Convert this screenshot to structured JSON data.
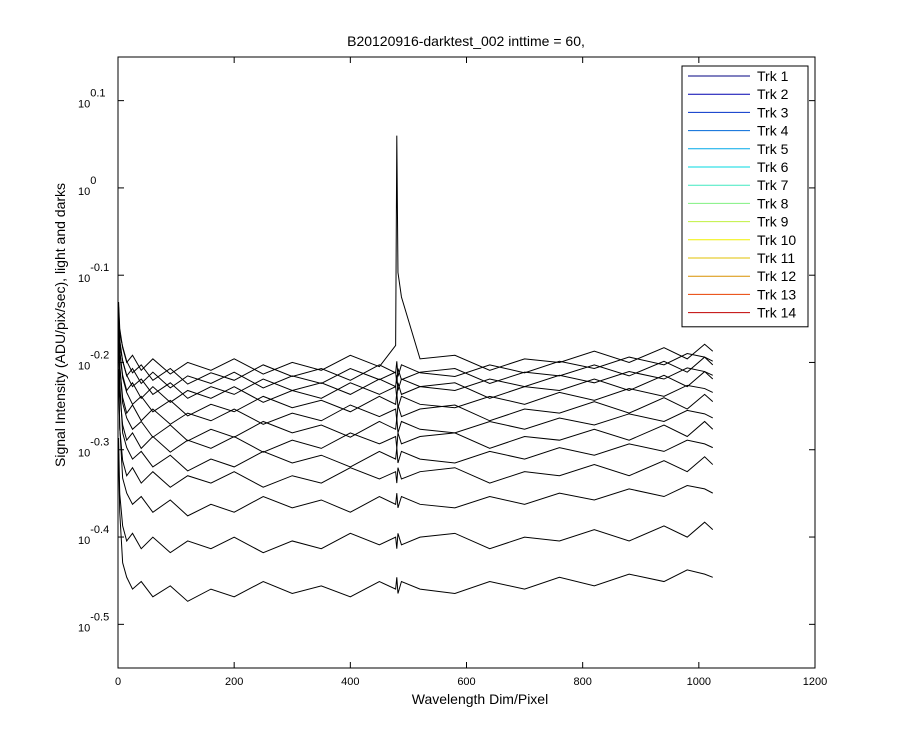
{
  "chart_data": {
    "type": "line",
    "title": "B20120916-darktest_002 inttime = 60,",
    "x_label": "Wavelength Dim/Pixel",
    "y_label": "Signal Intensity (ADU/pix/sec), light and darks",
    "yscale": "log",
    "xlim": [
      0,
      1200
    ],
    "xticks": [
      0,
      200,
      400,
      600,
      800,
      1000,
      1200
    ],
    "ylim": [
      0.2818,
      1.4125
    ],
    "yticks": [
      {
        "value": 0.3162,
        "label": "10^-0.5"
      },
      {
        "value": 0.3981,
        "label": "10^-0.4"
      },
      {
        "value": 0.5012,
        "label": "10^-0.3"
      },
      {
        "value": 0.631,
        "label": "10^-0.2"
      },
      {
        "value": 0.7943,
        "label": "10^-0.1"
      },
      {
        "value": 1,
        "label": "10^0"
      },
      {
        "value": 1.2589,
        "label": "10^0.1"
      }
    ],
    "grid": false,
    "legend": "northeast",
    "plot_line_color": "#000000",
    "x": [
      1,
      3,
      8,
      15,
      25,
      40,
      60,
      90,
      120,
      160,
      200,
      250,
      300,
      350,
      400,
      450,
      478,
      480,
      482,
      488,
      520,
      580,
      640,
      700,
      760,
      820,
      880,
      940,
      980,
      1010,
      1024
    ],
    "series": [
      {
        "name": "Trk 1",
        "color": "#000080",
        "values": [
          0.496,
          0.425,
          0.372,
          0.358,
          0.347,
          0.354,
          0.34,
          0.35,
          0.336,
          0.347,
          0.34,
          0.354,
          0.343,
          0.35,
          0.34,
          0.354,
          0.347,
          0.358,
          0.343,
          0.354,
          0.347,
          0.343,
          0.354,
          0.347,
          0.358,
          0.35,
          0.361,
          0.354,
          0.365,
          0.361,
          0.358
        ]
      },
      {
        "name": "Trk 2",
        "color": "#0000b0",
        "values": [
          0.517,
          0.446,
          0.41,
          0.394,
          0.402,
          0.386,
          0.398,
          0.382,
          0.394,
          0.386,
          0.398,
          0.382,
          0.394,
          0.386,
          0.402,
          0.39,
          0.398,
          0.386,
          0.402,
          0.39,
          0.398,
          0.402,
          0.386,
          0.398,
          0.394,
          0.406,
          0.394,
          0.41,
          0.398,
          0.414,
          0.406
        ]
      },
      {
        "name": "Trk 3",
        "color": "#0030c8",
        "values": [
          0.62,
          0.532,
          0.465,
          0.447,
          0.434,
          0.443,
          0.425,
          0.439,
          0.421,
          0.434,
          0.425,
          0.443,
          0.43,
          0.439,
          0.425,
          0.443,
          0.434,
          0.447,
          0.43,
          0.443,
          0.434,
          0.43,
          0.443,
          0.434,
          0.447,
          0.439,
          0.452,
          0.443,
          0.456,
          0.452,
          0.447
        ]
      },
      {
        "name": "Trk 4",
        "color": "#0068d8",
        "values": [
          0.615,
          0.53,
          0.487,
          0.468,
          0.478,
          0.459,
          0.473,
          0.454,
          0.468,
          0.459,
          0.473,
          0.454,
          0.468,
          0.459,
          0.478,
          0.464,
          0.473,
          0.459,
          0.478,
          0.464,
          0.473,
          0.478,
          0.459,
          0.473,
          0.468,
          0.482,
          0.468,
          0.487,
          0.473,
          0.492,
          0.482
        ]
      },
      {
        "name": "Trk 5",
        "color": "#00a8e8",
        "values": [
          0.66,
          0.599,
          0.524,
          0.504,
          0.489,
          0.499,
          0.479,
          0.494,
          0.474,
          0.489,
          0.479,
          0.499,
          0.484,
          0.494,
          0.479,
          0.499,
          0.489,
          0.504,
          0.484,
          0.499,
          0.489,
          0.484,
          0.499,
          0.489,
          0.504,
          0.494,
          0.509,
          0.499,
          0.514,
          0.509,
          0.504
        ]
      },
      {
        "name": "Trk 6",
        "color": "#00d8e0",
        "values": [
          0.67,
          0.581,
          0.535,
          0.514,
          0.524,
          0.503,
          0.519,
          0.498,
          0.514,
          0.503,
          0.519,
          0.498,
          0.514,
          0.503,
          0.524,
          0.509,
          0.519,
          0.503,
          0.524,
          0.509,
          0.519,
          0.524,
          0.503,
          0.519,
          0.514,
          0.529,
          0.514,
          0.535,
          0.519,
          0.54,
          0.529
        ]
      },
      {
        "name": "Trk 7",
        "color": "#40e8c0",
        "values": [
          0.68,
          0.626,
          0.567,
          0.545,
          0.529,
          0.54,
          0.518,
          0.535,
          0.513,
          0.529,
          0.518,
          0.54,
          0.524,
          0.535,
          0.518,
          0.54,
          0.529,
          0.545,
          0.524,
          0.54,
          0.529,
          0.524,
          0.54,
          0.529,
          0.545,
          0.535,
          0.551,
          0.54,
          0.556,
          0.551,
          0.545
        ]
      },
      {
        "name": "Trk 8",
        "color": "#80f080",
        "values": [
          0.69,
          0.625,
          0.575,
          0.552,
          0.564,
          0.541,
          0.558,
          0.536,
          0.552,
          0.541,
          0.558,
          0.536,
          0.552,
          0.541,
          0.564,
          0.547,
          0.558,
          0.541,
          0.564,
          0.547,
          0.558,
          0.564,
          0.541,
          0.558,
          0.552,
          0.569,
          0.552,
          0.575,
          0.558,
          0.58,
          0.569
        ]
      },
      {
        "name": "Trk 9",
        "color": "#c0f040",
        "values": [
          0.7,
          0.65,
          0.606,
          0.583,
          0.565,
          0.577,
          0.554,
          0.571,
          0.548,
          0.565,
          0.554,
          0.577,
          0.56,
          0.571,
          0.554,
          0.577,
          0.565,
          0.583,
          0.56,
          0.577,
          0.565,
          0.56,
          0.577,
          0.565,
          0.583,
          0.571,
          0.589,
          0.577,
          0.594,
          0.589,
          0.583
        ]
      },
      {
        "name": "Trk 10",
        "color": "#f0f000",
        "values": [
          0.7,
          0.65,
          0.61,
          0.586,
          0.598,
          0.574,
          0.592,
          0.568,
          0.586,
          0.574,
          0.592,
          0.568,
          0.586,
          0.574,
          0.598,
          0.58,
          0.592,
          0.574,
          0.598,
          0.58,
          0.592,
          0.598,
          0.574,
          0.592,
          0.586,
          0.604,
          0.586,
          0.61,
          0.592,
          0.616,
          0.604
        ]
      },
      {
        "name": "Trk 11",
        "color": "#e0c000",
        "values": [
          0.71,
          0.66,
          0.634,
          0.61,
          0.592,
          0.604,
          0.58,
          0.598,
          0.574,
          0.592,
          0.58,
          0.604,
          0.586,
          0.598,
          0.58,
          0.604,
          0.592,
          0.61,
          0.586,
          0.604,
          0.592,
          0.586,
          0.604,
          0.592,
          0.61,
          0.598,
          0.616,
          0.604,
          0.622,
          0.616,
          0.61
        ]
      },
      {
        "name": "Trk 12",
        "color": "#d89000",
        "values": [
          0.72,
          0.67,
          0.633,
          0.609,
          0.621,
          0.597,
          0.615,
          0.59,
          0.609,
          0.597,
          0.615,
          0.59,
          0.609,
          0.597,
          0.621,
          0.603,
          0.615,
          0.597,
          0.621,
          0.603,
          0.615,
          0.621,
          0.597,
          0.615,
          0.609,
          0.627,
          0.609,
          0.633,
          0.615,
          0.64,
          0.627
        ]
      },
      {
        "name": "Trk 13",
        "color": "#e84000",
        "values": [
          0.73,
          0.68,
          0.658,
          0.633,
          0.614,
          0.627,
          0.602,
          0.621,
          0.596,
          0.614,
          0.602,
          0.627,
          0.608,
          0.621,
          0.602,
          0.627,
          0.614,
          0.633,
          0.608,
          0.627,
          0.614,
          0.608,
          0.627,
          0.614,
          0.633,
          0.621,
          0.64,
          0.627,
          0.646,
          0.64,
          0.633
        ]
      },
      {
        "name": "Trk 14",
        "color": "#c00000",
        "values": [
          0.74,
          0.69,
          0.656,
          0.631,
          0.643,
          0.618,
          0.637,
          0.612,
          0.631,
          0.618,
          0.637,
          0.612,
          0.631,
          0.618,
          0.643,
          0.624,
          0.66,
          1.148,
          0.8,
          0.75,
          0.637,
          0.643,
          0.618,
          0.637,
          0.631,
          0.65,
          0.631,
          0.656,
          0.637,
          0.662,
          0.65
        ]
      }
    ]
  }
}
